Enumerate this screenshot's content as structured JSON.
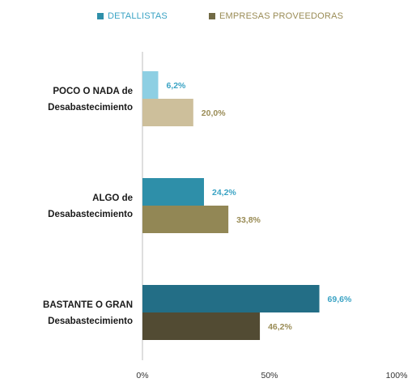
{
  "chart_data": {
    "type": "bar",
    "orientation": "horizontal",
    "title": "",
    "xlabel": "",
    "ylabel": "",
    "xlim": [
      0,
      100
    ],
    "ticks": [
      "0%",
      "50%",
      "100%"
    ],
    "tick_values": [
      0,
      50,
      100
    ],
    "grid": false,
    "legend_position": "top",
    "categories": [
      {
        "line1": "POCO O NADA de",
        "line2": "Desabastecimiento"
      },
      {
        "line1": "ALGO de",
        "line2": "Desabastecimiento"
      },
      {
        "line1": "BASTANTE O GRAN",
        "line2": "Desabastecimiento"
      }
    ],
    "series": [
      {
        "name": "DETALLISTAS",
        "values": [
          6.2,
          24.2,
          69.6
        ],
        "labels": [
          "6,2%",
          "24,2%",
          "69,6%"
        ],
        "colors": [
          "#8ecfe3",
          "#2e8fa9",
          "#236e86"
        ],
        "label_color": "#3aa3c4",
        "legend_color": "#2e8fa9"
      },
      {
        "name": "EMPRESAS PROVEEDORAS",
        "values": [
          20.0,
          33.8,
          46.2
        ],
        "labels": [
          "20,0%",
          "33,8%",
          "46,2%"
        ],
        "colors": [
          "#cdbf9b",
          "#928755",
          "#524b33"
        ],
        "label_color": "#9a8c56",
        "legend_color": "#716a45"
      }
    ]
  }
}
